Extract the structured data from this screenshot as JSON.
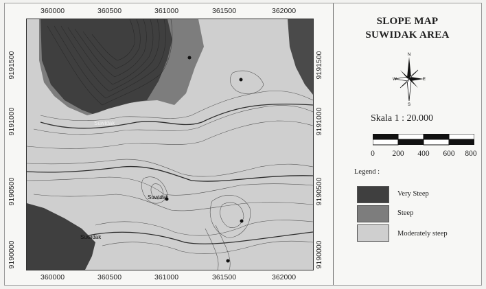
{
  "map": {
    "title_line1": "SLOPE MAP",
    "title_line2": "SUWIDAK AREA",
    "x_ticks": [
      "360000",
      "360500",
      "361000",
      "361500",
      "362000"
    ],
    "y_ticks": [
      "9191500",
      "9191000",
      "9190500",
      "9190000"
    ],
    "contour_labels": [
      "Suwidak",
      "Suwidak",
      "Suwidak"
    ]
  },
  "north_arrow": {
    "n": "N",
    "s": "S",
    "e": "E",
    "w": "W"
  },
  "scale": {
    "label": "Skala   1 : 20.000",
    "ticks": [
      "0",
      "200",
      "400",
      "600",
      "800"
    ]
  },
  "legend": {
    "title": "Legend :",
    "items": [
      {
        "label": "Very Steep",
        "color": "#3f3f3f"
      },
      {
        "label": "Steep",
        "color": "#7d7d7d"
      },
      {
        "label": "Moderately steep",
        "color": "#cfcfcf"
      }
    ]
  }
}
